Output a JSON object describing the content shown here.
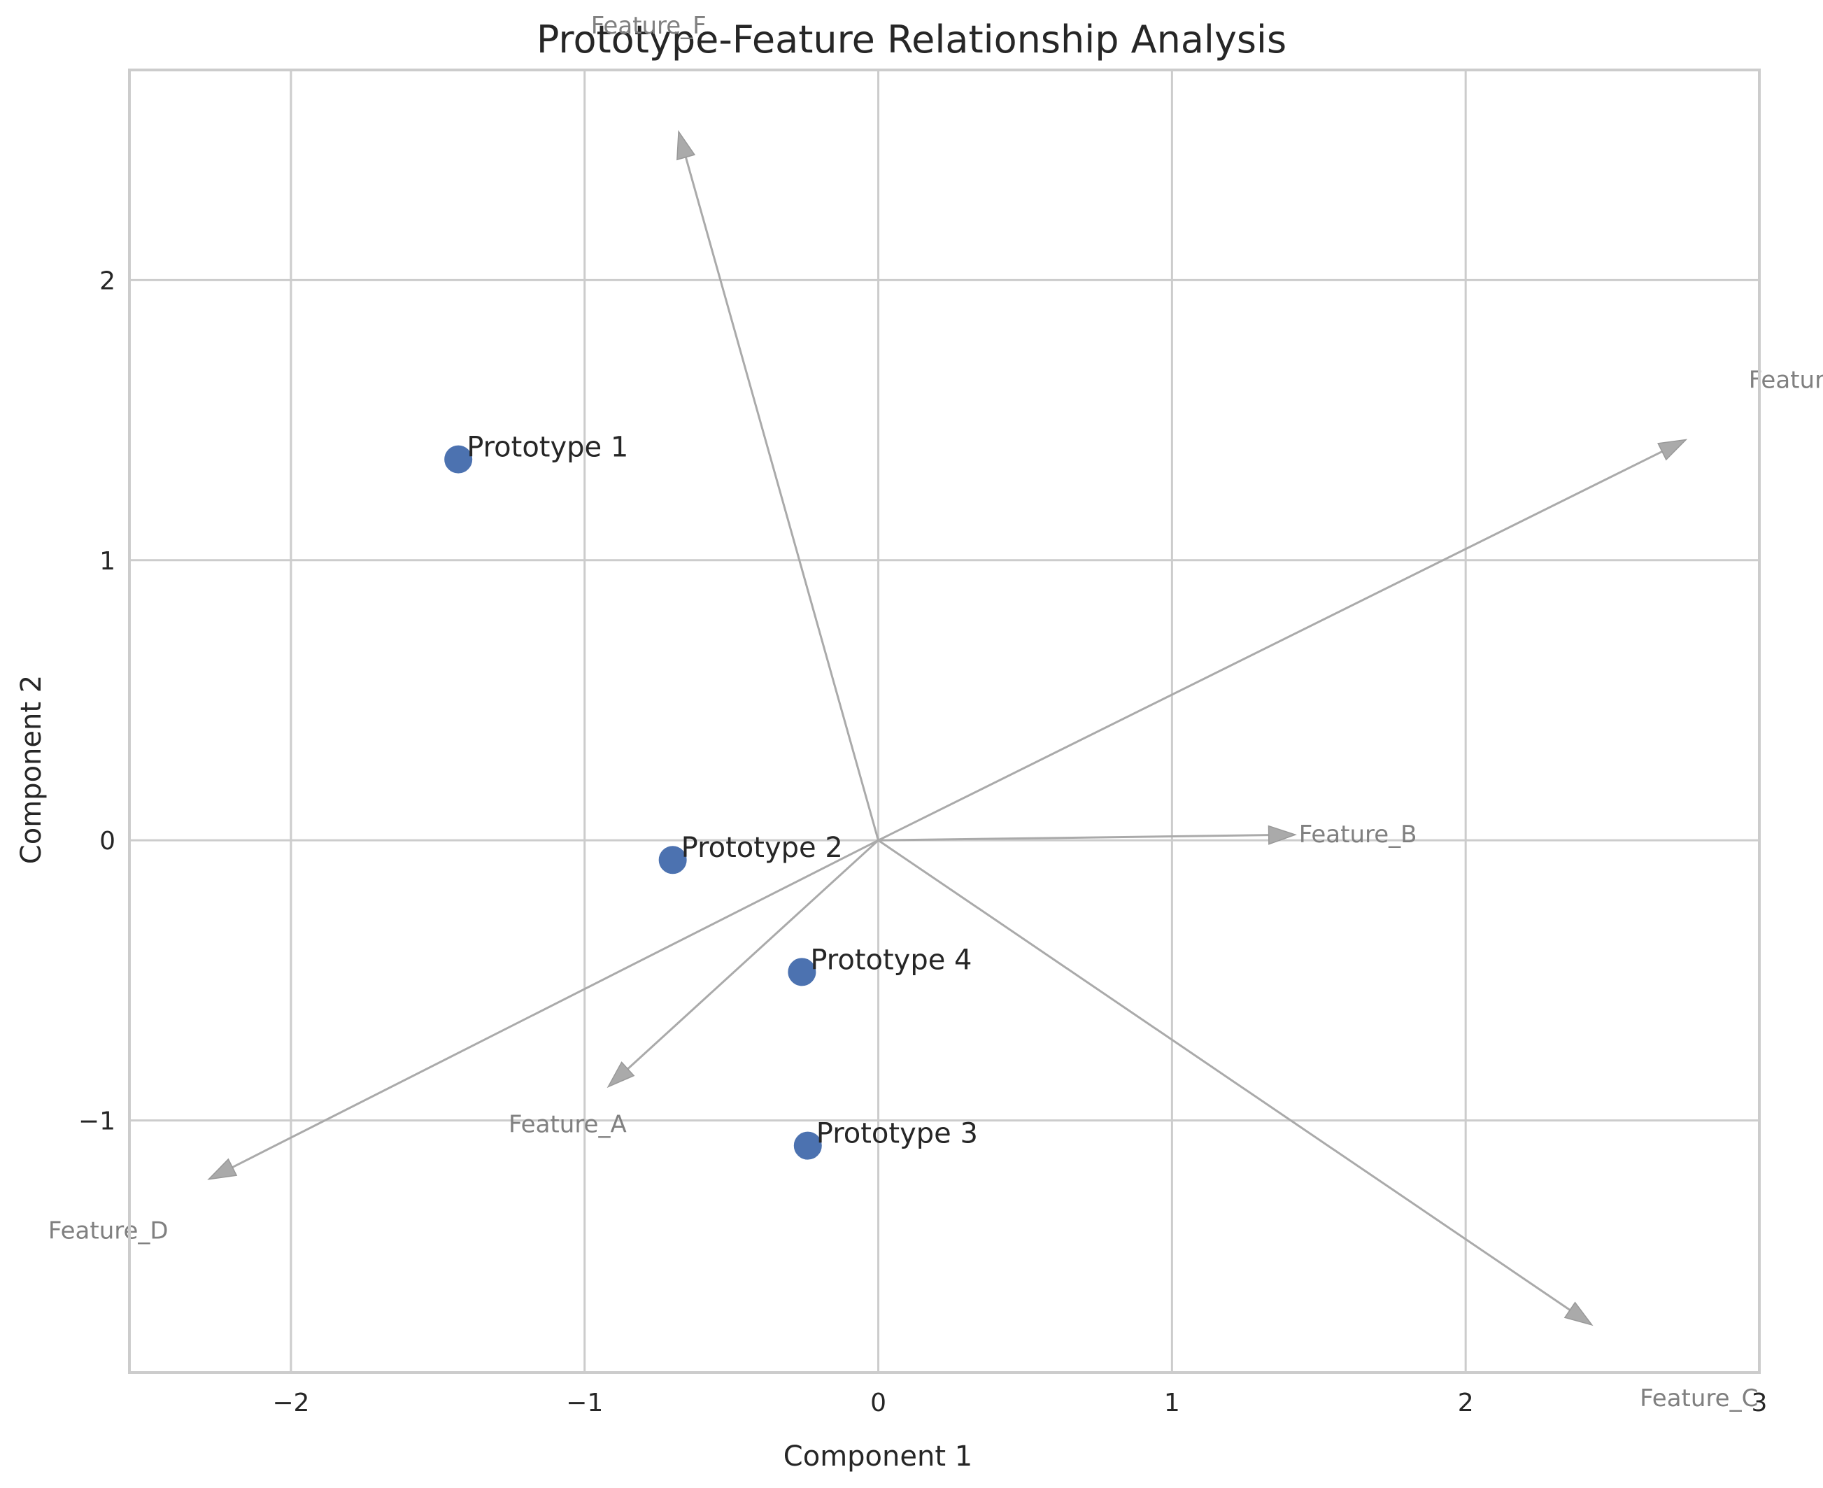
{
  "chart_data": {
    "type": "scatter",
    "title": "Prototype-Feature Relationship Analysis",
    "xlabel": "Component 1",
    "ylabel": "Component 2",
    "xlim": [
      -2.55,
      3.0
    ],
    "ylim": [
      -1.9,
      2.75
    ],
    "xticks": [
      -2,
      -1,
      0,
      1,
      2,
      3
    ],
    "yticks": [
      -1,
      0,
      1,
      2
    ],
    "grid": true,
    "colors": {
      "points": "#4c72b0",
      "arrows": "#aaaaaa",
      "feature_text": "#808080",
      "grid": "#cccccc"
    },
    "points": [
      {
        "label": "Prototype 1",
        "x": -1.43,
        "y": 1.36
      },
      {
        "label": "Prototype 2",
        "x": -0.7,
        "y": -0.07
      },
      {
        "label": "Prototype 3",
        "x": -0.24,
        "y": -1.09
      },
      {
        "label": "Prototype 4",
        "x": -0.26,
        "y": -0.47
      }
    ],
    "features": [
      {
        "label": "Feature_A",
        "x": -0.92,
        "y": -0.88
      },
      {
        "label": "Feature_B",
        "x": 1.42,
        "y": 0.02
      },
      {
        "label": "Feature_C",
        "x": 2.43,
        "y": -1.73
      },
      {
        "label": "Feature_D",
        "x": -2.28,
        "y": -1.21
      },
      {
        "label": "Feature_E",
        "x": 2.75,
        "y": 1.43
      },
      {
        "label": "Feature_F",
        "x": -0.68,
        "y": 2.53
      }
    ]
  }
}
